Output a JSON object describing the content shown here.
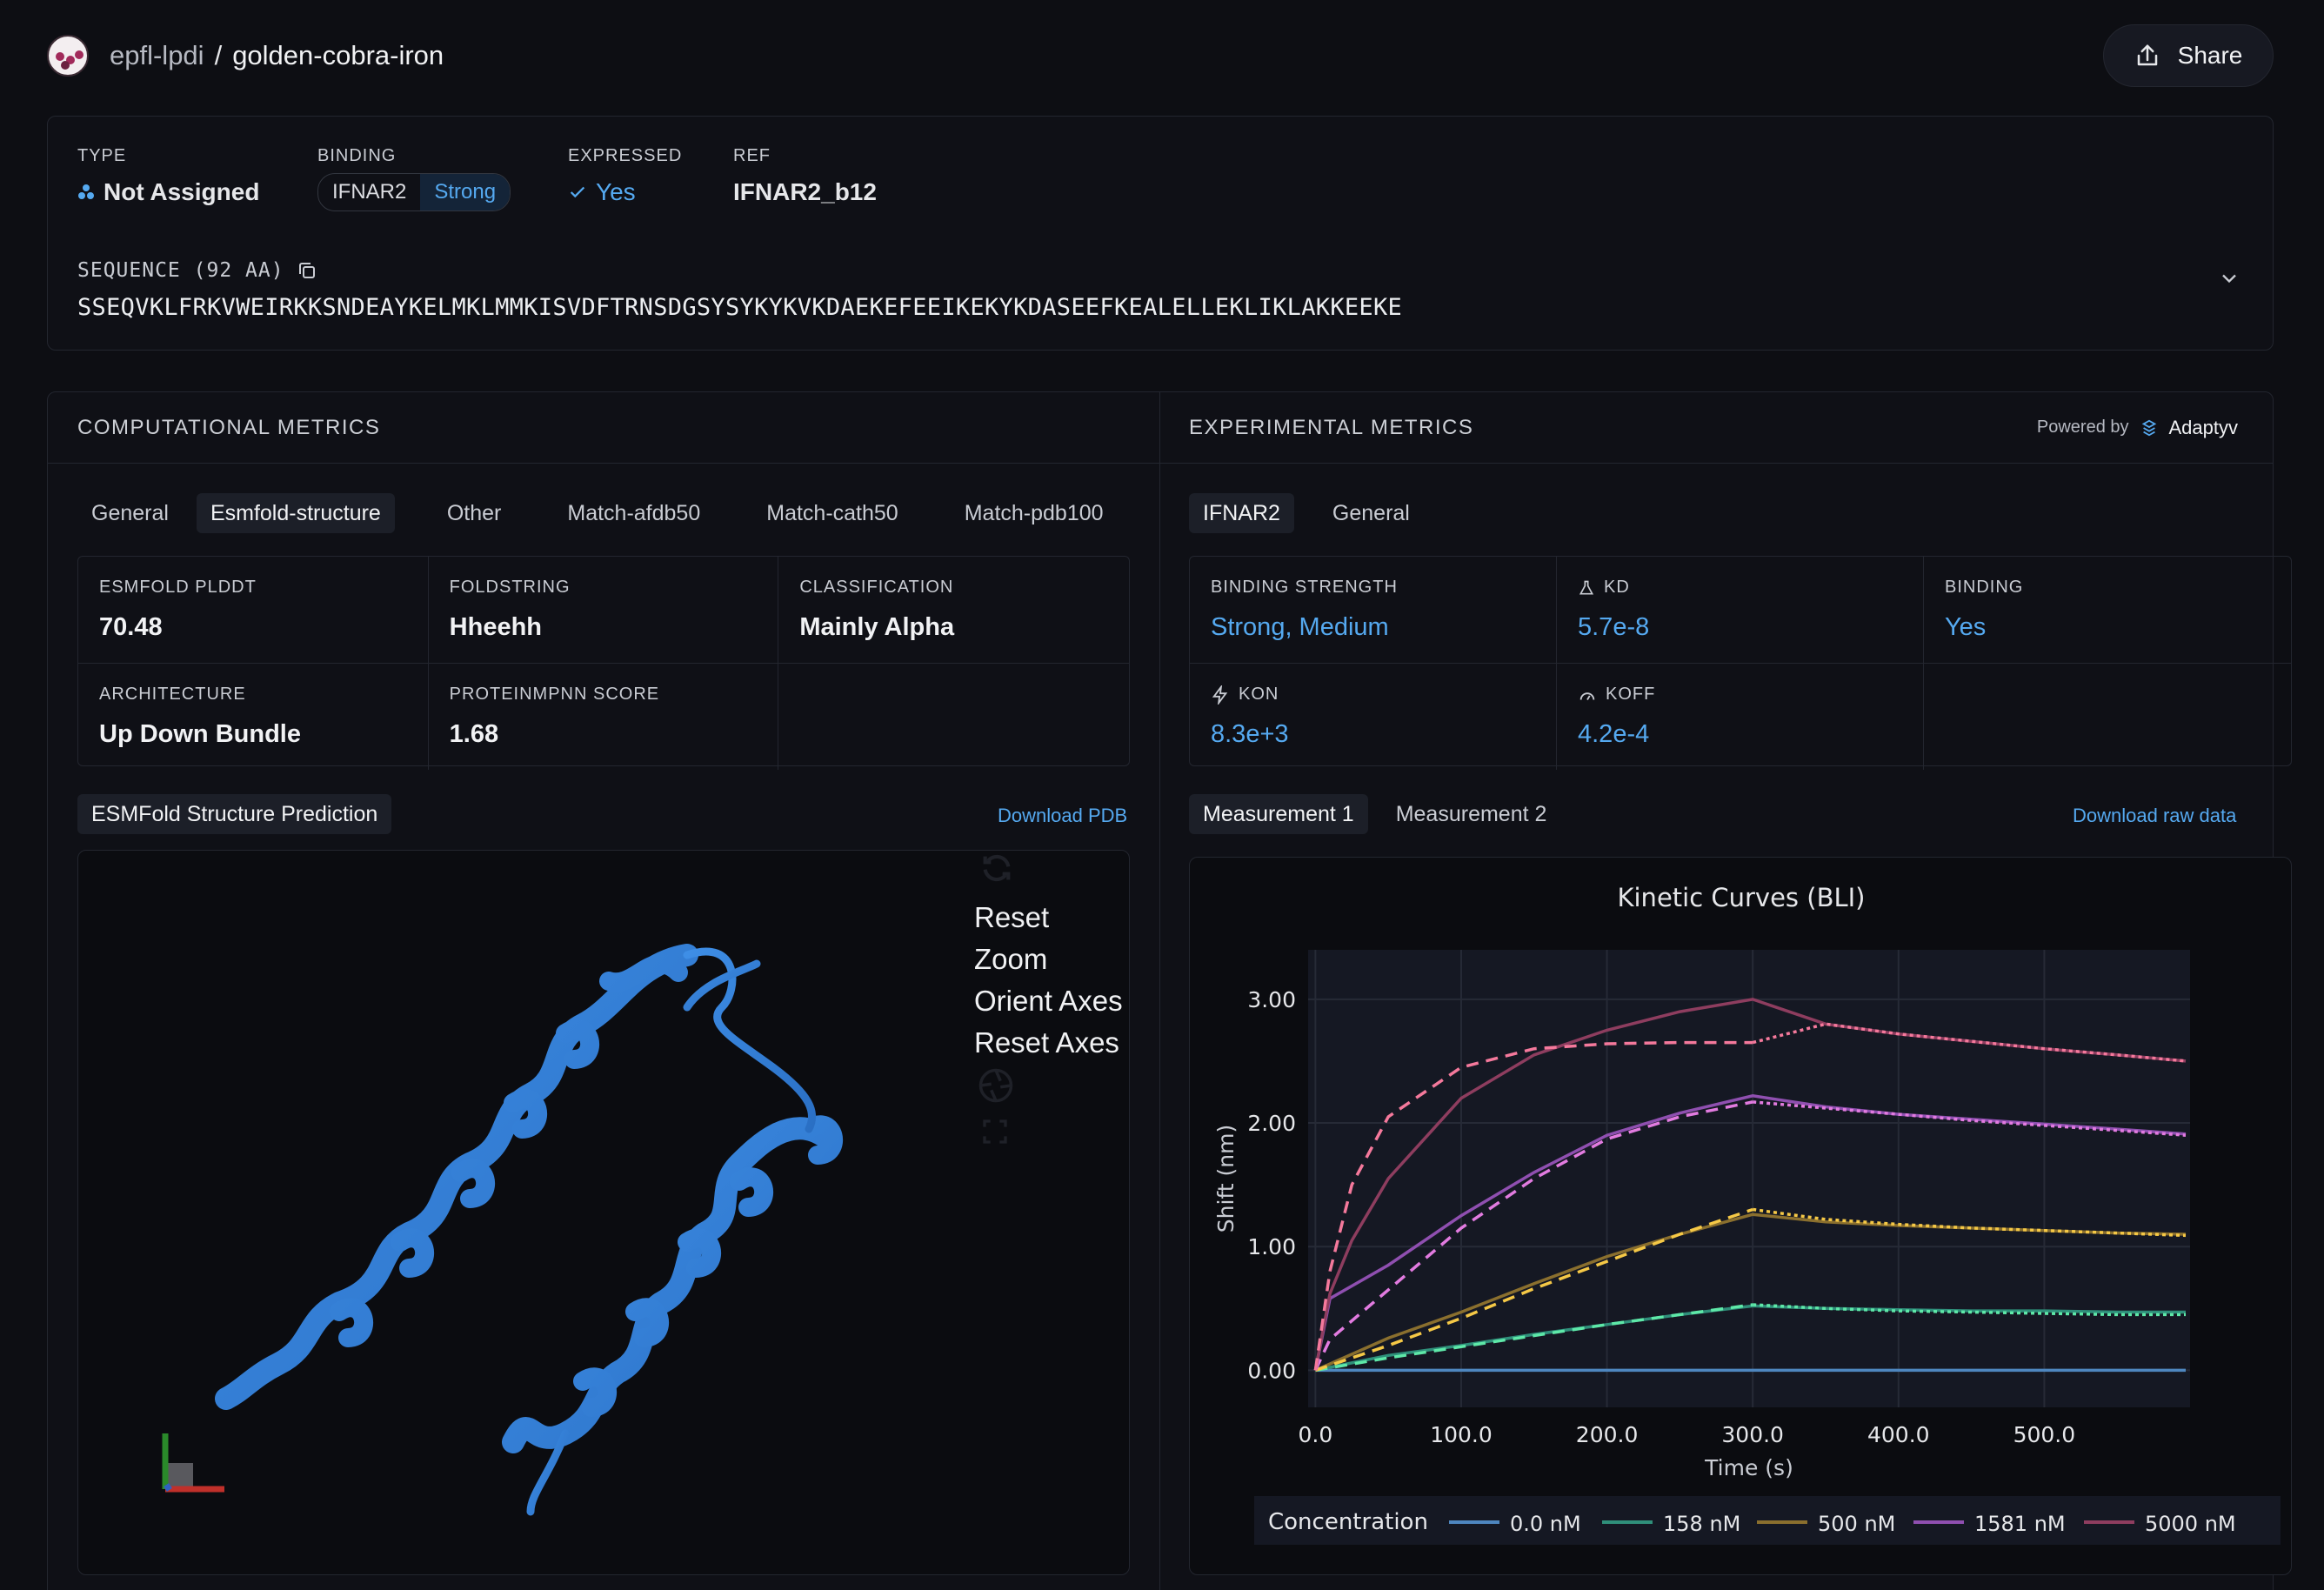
{
  "header": {
    "org": "epfl-lpdi",
    "separator": "/",
    "repo": "golden-cobra-iron",
    "share_label": "Share"
  },
  "info": {
    "type_label": "TYPE",
    "type_value": "Not Assigned",
    "binding_label": "BINDING",
    "binding_target": "IFNAR2",
    "binding_strength": "Strong",
    "expressed_label": "EXPRESSED",
    "expressed_value": "Yes",
    "ref_label": "REF",
    "ref_value": "IFNAR2_b12",
    "sequence_label": "SEQUENCE (92 AA)",
    "sequence": "SSEQVKLFRKVWEIRKKSNDEAYKELMKLMMKISVDFTRNSDGSYSYKYKVKDAEKEFEEIKEKYKDASEEFKEALELLEKLIKLAKKEEKE"
  },
  "computational": {
    "title": "COMPUTATIONAL METRICS",
    "tabs": [
      "General",
      "Esmfold-structure",
      "Other",
      "Match-afdb50",
      "Match-cath50",
      "Match-pdb100"
    ],
    "active_tab": "Esmfold-structure",
    "cells": [
      {
        "label": "ESMFOLD PLDDT",
        "value": "70.48"
      },
      {
        "label": "FOLDSTRING",
        "value": "Hheehh"
      },
      {
        "label": "CLASSIFICATION",
        "value": "Mainly Alpha"
      },
      {
        "label": "ARCHITECTURE",
        "value": "Up Down Bundle"
      },
      {
        "label": "PROTEINMPNN SCORE",
        "value": "1.68"
      }
    ],
    "viewer_tab": "ESMFold Structure Prediction",
    "download_label": "Download PDB",
    "viewer_tools": [
      "Reset Zoom",
      "Orient Axes",
      "Reset Axes"
    ]
  },
  "experimental": {
    "title": "EXPERIMENTAL METRICS",
    "powered_by": "Powered by",
    "brand": "Adaptyv",
    "tabs": [
      "IFNAR2",
      "General"
    ],
    "active_tab": "IFNAR2",
    "cells": [
      {
        "label": "BINDING STRENGTH",
        "value": "Strong, Medium",
        "icon": ""
      },
      {
        "label": "KD",
        "value": "5.7e-8",
        "icon": "flask-icon"
      },
      {
        "label": "BINDING",
        "value": "Yes",
        "icon": ""
      },
      {
        "label": "KON",
        "value": "8.3e+3",
        "icon": "bolt-icon"
      },
      {
        "label": "KOFF",
        "value": "4.2e-4",
        "icon": "gauge-icon"
      }
    ],
    "measurement_tabs": [
      "Measurement 1",
      "Measurement 2"
    ],
    "download_label": "Download raw data"
  },
  "chart_data": {
    "type": "line",
    "title": "Kinetic Curves (BLI)",
    "xlabel": "Time (s)",
    "ylabel": "Shift (nm)",
    "xlim": [
      -5,
      600
    ],
    "ylim": [
      -0.3,
      3.4
    ],
    "xticks": [
      "0.0",
      "100.0",
      "200.0",
      "300.0",
      "400.0",
      "500.0"
    ],
    "xtick_values": [
      0,
      100,
      200,
      300,
      400,
      500
    ],
    "yticks": [
      "0.00",
      "1.00",
      "2.00",
      "3.00"
    ],
    "ytick_values": [
      0,
      1,
      2,
      3
    ],
    "legend_title": "Concentration",
    "legend_position": "bottom",
    "series": [
      {
        "name": "0.0 nM",
        "color": "#4e86bf",
        "fit_color": "#4e86bf",
        "x": [
          0,
          50,
          100,
          150,
          200,
          250,
          300,
          350,
          400,
          450,
          500,
          550,
          597
        ],
        "measured": [
          0,
          0.0,
          0.0,
          0.0,
          0.0,
          0.0,
          0.0,
          0.0,
          0.0,
          0.0,
          0.0,
          0.0,
          0.0
        ]
      },
      {
        "name": "158 nM",
        "color": "#2f8f7a",
        "fit_color": "#5ee8a8",
        "x": [
          0,
          50,
          100,
          150,
          200,
          250,
          300,
          350,
          400,
          450,
          500,
          550,
          597
        ],
        "measured": [
          0,
          0.12,
          0.2,
          0.29,
          0.37,
          0.45,
          0.52,
          0.5,
          0.49,
          0.48,
          0.48,
          0.47,
          0.47
        ],
        "fit": [
          0,
          0.1,
          0.19,
          0.28,
          0.37,
          0.45,
          0.53,
          0.5,
          0.48,
          0.47,
          0.46,
          0.45,
          0.45
        ]
      },
      {
        "name": "500 nM",
        "color": "#8a6f2e",
        "fit_color": "#f5c846",
        "x": [
          0,
          50,
          100,
          150,
          200,
          250,
          300,
          350,
          400,
          450,
          500,
          550,
          597
        ],
        "measured": [
          0,
          0.26,
          0.47,
          0.7,
          0.92,
          1.1,
          1.26,
          1.2,
          1.17,
          1.15,
          1.13,
          1.11,
          1.1
        ],
        "fit": [
          0,
          0.2,
          0.42,
          0.66,
          0.88,
          1.1,
          1.3,
          1.22,
          1.18,
          1.15,
          1.13,
          1.11,
          1.09
        ]
      },
      {
        "name": "1581 nM",
        "color": "#8f4fb0",
        "fit_color": "#e27be0",
        "x": [
          0,
          10,
          50,
          100,
          150,
          200,
          250,
          300,
          350,
          400,
          450,
          500,
          550,
          597
        ],
        "measured": [
          0,
          0.58,
          0.85,
          1.25,
          1.6,
          1.9,
          2.08,
          2.22,
          2.13,
          2.07,
          2.03,
          1.99,
          1.95,
          1.91
        ],
        "fit": [
          0,
          0.25,
          0.65,
          1.15,
          1.55,
          1.87,
          2.05,
          2.17,
          2.12,
          2.07,
          2.02,
          1.98,
          1.94,
          1.9
        ]
      },
      {
        "name": "5000 nM",
        "color": "#8e3d5f",
        "fit_color": "#f5799c",
        "x": [
          0,
          10,
          25,
          50,
          100,
          150,
          200,
          250,
          300,
          350,
          400,
          450,
          500,
          550,
          597
        ],
        "measured": [
          0,
          0.62,
          1.05,
          1.55,
          2.2,
          2.55,
          2.75,
          2.9,
          3.0,
          2.8,
          2.72,
          2.66,
          2.6,
          2.55,
          2.5
        ],
        "fit": [
          0,
          0.8,
          1.5,
          2.05,
          2.45,
          2.6,
          2.64,
          2.65,
          2.65,
          2.8,
          2.72,
          2.66,
          2.6,
          2.55,
          2.5
        ]
      }
    ]
  }
}
